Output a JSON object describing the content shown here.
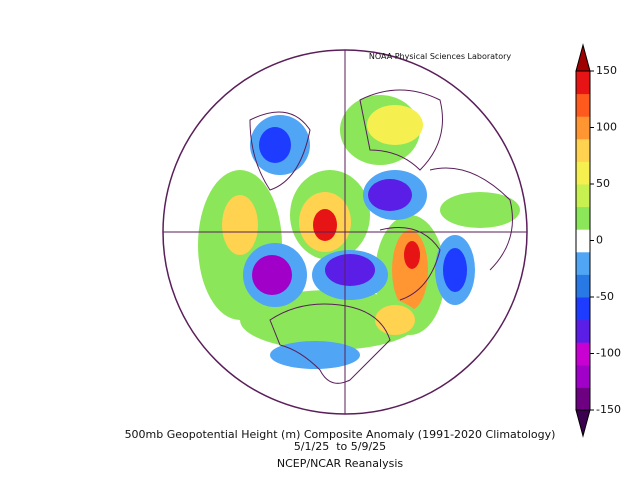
{
  "header": {
    "credit": "NOAA Physical Sciences Laboratory"
  },
  "caption": {
    "line1": "500mb Geopotential Height (m) Composite Anomaly (1991-2020 Climatology)",
    "line2": "5/1/25  to 5/9/25",
    "line3": "NCEP/NCAR Reanalysis"
  },
  "colorbar": {
    "range": [
      -150,
      150
    ],
    "ticks": [
      150,
      100,
      50,
      0,
      -50,
      -100,
      -150
    ],
    "colors": [
      "#6e0082",
      "#a000c8",
      "#c800d2",
      "#5a1ee6",
      "#1e3cff",
      "#2878e6",
      "#50a5f5",
      "#ffffff",
      "#8ce65a",
      "#c8f050",
      "#f5f050",
      "#ffd250",
      "#ff9632",
      "#ff5a1e",
      "#e61414"
    ]
  }
}
